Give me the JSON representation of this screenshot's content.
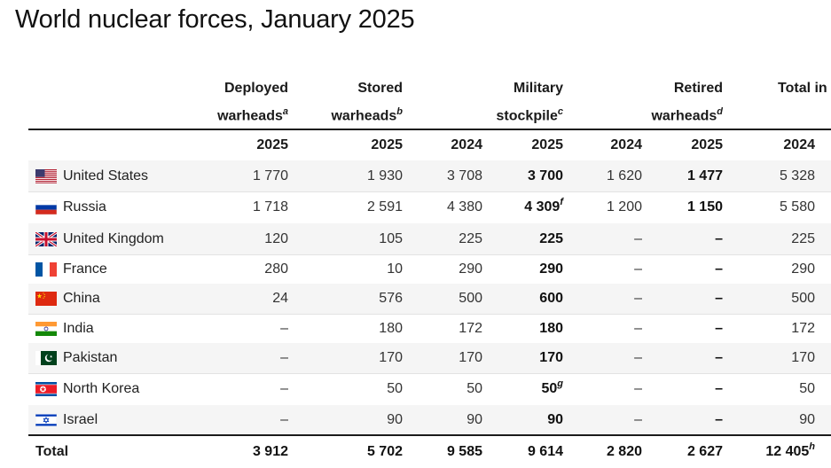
{
  "title": "World nuclear forces, January 2025",
  "headers": {
    "deployed": {
      "line1": "Deployed",
      "line2": "warheads",
      "note": "a"
    },
    "stored": {
      "line1": "Stored",
      "line2": "warheads",
      "note": "b"
    },
    "military": {
      "line1": "Military",
      "line2": "stockpile",
      "note": "c"
    },
    "retired": {
      "line1": "Retired",
      "line2": "warheads",
      "note": "d"
    },
    "total": {
      "line1": "",
      "line2": "Total in"
    }
  },
  "years": [
    "2025",
    "2025",
    "2024",
    "2025",
    "2024",
    "2025",
    "2024"
  ],
  "rows": [
    {
      "country": "United States",
      "flag": "us-flag-icon",
      "deployed": "1 770",
      "stored": "1 930",
      "mil2024": "3 708",
      "mil2025": "3 700",
      "mil2025_note": "",
      "ret2024": "1 620",
      "ret2025": "1 477",
      "tot2024": "5 328"
    },
    {
      "country": "Russia",
      "flag": "russia-flag-icon",
      "deployed": "1 718",
      "stored": "2 591",
      "mil2024": "4 380",
      "mil2025": "4 309",
      "mil2025_note": "f",
      "ret2024": "1 200",
      "ret2025": "1 150",
      "tot2024": "5 580"
    },
    {
      "country": "United Kingdom",
      "flag": "uk-flag-icon",
      "deployed": "120",
      "stored": "105",
      "mil2024": "225",
      "mil2025": "225",
      "mil2025_note": "",
      "ret2024": "–",
      "ret2025": "–",
      "tot2024": "225"
    },
    {
      "country": "France",
      "flag": "france-flag-icon",
      "deployed": "280",
      "stored": "10",
      "mil2024": "290",
      "mil2025": "290",
      "mil2025_note": "",
      "ret2024": "–",
      "ret2025": "–",
      "tot2024": "290"
    },
    {
      "country": "China",
      "flag": "china-flag-icon",
      "deployed": "24",
      "stored": "576",
      "mil2024": "500",
      "mil2025": "600",
      "mil2025_note": "",
      "ret2024": "–",
      "ret2025": "–",
      "tot2024": "500"
    },
    {
      "country": "India",
      "flag": "india-flag-icon",
      "deployed": "–",
      "stored": "180",
      "mil2024": "172",
      "mil2025": "180",
      "mil2025_note": "",
      "ret2024": "–",
      "ret2025": "–",
      "tot2024": "172"
    },
    {
      "country": "Pakistan",
      "flag": "pakistan-flag-icon",
      "deployed": "–",
      "stored": "170",
      "mil2024": "170",
      "mil2025": "170",
      "mil2025_note": "",
      "ret2024": "–",
      "ret2025": "–",
      "tot2024": "170"
    },
    {
      "country": "North Korea",
      "flag": "north-korea-flag-icon",
      "deployed": "–",
      "stored": "50",
      "mil2024": "50",
      "mil2025": "50",
      "mil2025_note": "g",
      "ret2024": "–",
      "ret2025": "–",
      "tot2024": "50"
    },
    {
      "country": "Israel",
      "flag": "israel-flag-icon",
      "deployed": "–",
      "stored": "90",
      "mil2024": "90",
      "mil2025": "90",
      "mil2025_note": "",
      "ret2024": "–",
      "ret2025": "–",
      "tot2024": "90"
    }
  ],
  "total": {
    "label": "Total",
    "deployed": "3 912",
    "stored": "5 702",
    "mil2024": "9 585",
    "mil2025": "9 614",
    "ret2024": "2 820",
    "ret2025": "2 627",
    "tot2024": "12 405",
    "tot2024_note": "h"
  }
}
